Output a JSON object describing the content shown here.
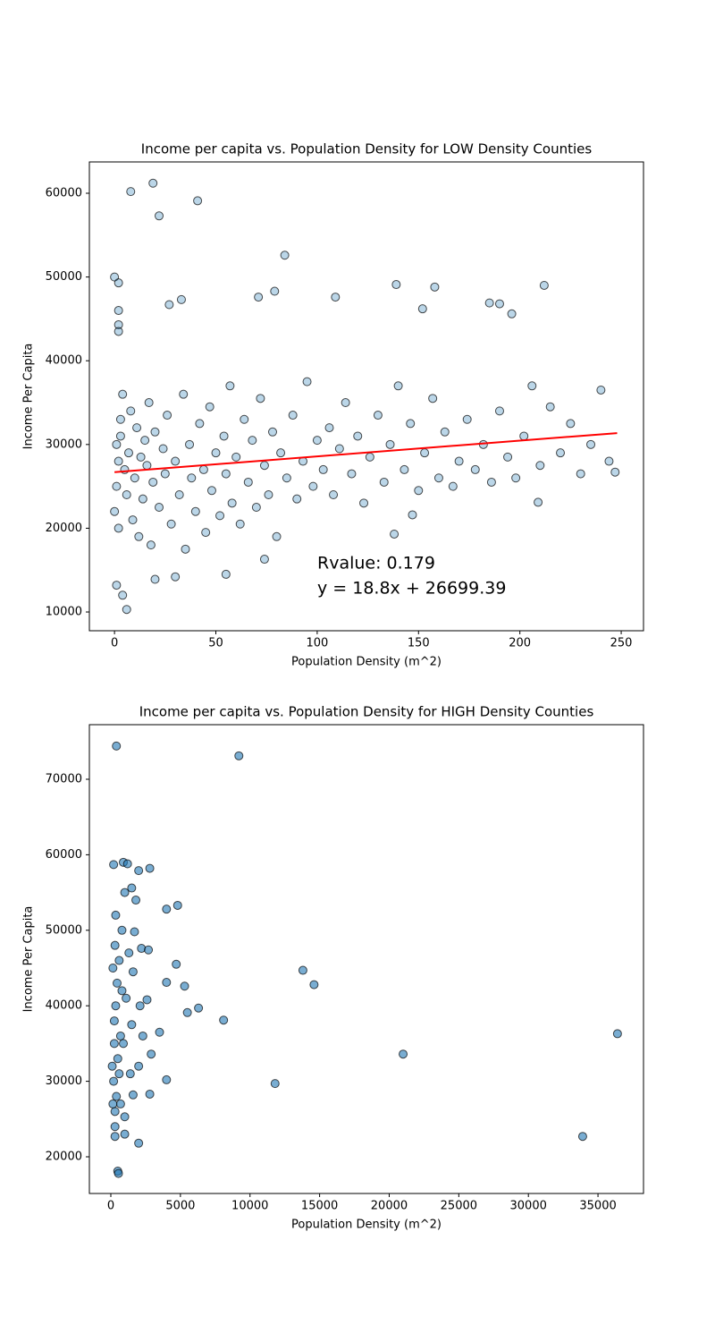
{
  "chart_data": [
    {
      "type": "scatter",
      "title": "Income per capita vs. Population Density for LOW Density Counties",
      "x_label": "Population Density (m^2)",
      "y_label": "Income Per Capita",
      "xlim": [
        -12.4,
        261
      ],
      "ylim": [
        7760,
        63740
      ],
      "xticks": [
        0,
        50,
        100,
        150,
        200,
        250
      ],
      "yticks": [
        10000,
        20000,
        30000,
        40000,
        50000,
        60000
      ],
      "color": "#1f77b4",
      "opacity": 0.3,
      "x": [
        8,
        19,
        41,
        22,
        84,
        0,
        2,
        2,
        2,
        2,
        139,
        158,
        212,
        79,
        71,
        109,
        33,
        27,
        185,
        190,
        152,
        196,
        6,
        4,
        1,
        20,
        30,
        55,
        74,
        138,
        147,
        209,
        1,
        2,
        1,
        3,
        0,
        4,
        2,
        5,
        3,
        6,
        7,
        8,
        9,
        10,
        11,
        12,
        13,
        14,
        15,
        16,
        17,
        18,
        19,
        20,
        22,
        24,
        25,
        26,
        28,
        30,
        32,
        34,
        35,
        37,
        38,
        40,
        42,
        44,
        45,
        47,
        48,
        50,
        52,
        54,
        55,
        57,
        58,
        60,
        62,
        64,
        66,
        68,
        70,
        72,
        74,
        76,
        78,
        80,
        82,
        85,
        88,
        90,
        93,
        95,
        98,
        100,
        103,
        106,
        108,
        111,
        114,
        117,
        120,
        123,
        126,
        130,
        133,
        136,
        140,
        143,
        146,
        150,
        153,
        157,
        160,
        163,
        167,
        170,
        174,
        178,
        182,
        186,
        190,
        194,
        198,
        202,
        206,
        210,
        215,
        220,
        225,
        230,
        235,
        240,
        244,
        247
      ],
      "values": [
        60200,
        61200,
        59100,
        57300,
        52600,
        50000,
        49300,
        46000,
        44300,
        43500,
        49100,
        48800,
        49000,
        48300,
        47600,
        47600,
        47300,
        46700,
        46900,
        46800,
        46200,
        45600,
        10300,
        12000,
        13200,
        13900,
        14200,
        14500,
        16300,
        19300,
        21600,
        23100,
        30000,
        28000,
        25000,
        33000,
        22000,
        36000,
        20000,
        27000,
        31000,
        24000,
        29000,
        34000,
        21000,
        26000,
        32000,
        19000,
        28500,
        23500,
        30500,
        27500,
        35000,
        18000,
        25500,
        31500,
        22500,
        29500,
        26500,
        33500,
        20500,
        28000,
        24000,
        36000,
        17500,
        30000,
        26000,
        22000,
        32500,
        27000,
        19500,
        34500,
        24500,
        29000,
        21500,
        31000,
        26500,
        37000,
        23000,
        28500,
        20500,
        33000,
        25500,
        30500,
        22500,
        35500,
        27500,
        24000,
        31500,
        19000,
        29000,
        26000,
        33500,
        23500,
        28000,
        37500,
        25000,
        30500,
        27000,
        32000,
        24000,
        29500,
        35000,
        26500,
        31000,
        23000,
        28500,
        33500,
        25500,
        30000,
        37000,
        27000,
        32500,
        24500,
        29000,
        35500,
        26000,
        31500,
        25000,
        28000,
        33000,
        27000,
        30000,
        25500,
        34000,
        28500,
        26000,
        31000,
        37000,
        27500,
        34500,
        29000,
        32500,
        26500,
        30000,
        36500,
        28000,
        26700
      ],
      "fit": {
        "x": [
          0,
          248
        ],
        "values": [
          26699.39,
          31361.79
        ],
        "color": "#ff0000"
      },
      "annotations": [
        "Rvalue: 0.179",
        "y = 18.8x + 26699.39"
      ],
      "annotation_color": "#ff0000"
    },
    {
      "type": "scatter",
      "title": "Income per capita vs. Population Density for HIGH Density Counties",
      "x_label": "Population Density (m^2)",
      "y_label": "Income Per Capita",
      "xlim": [
        -1541,
        38270
      ],
      "ylim": [
        15142,
        77227
      ],
      "xticks": [
        0,
        5000,
        10000,
        15000,
        20000,
        25000,
        30000,
        35000
      ],
      "yticks": [
        20000,
        30000,
        40000,
        50000,
        60000,
        70000
      ],
      "color": "#1f77b4",
      "opacity": 0.6,
      "x": [
        400,
        9200,
        36400,
        33900,
        21000,
        11800,
        13800,
        14600,
        8100,
        6300,
        5500,
        5300,
        4700,
        4800,
        4000,
        3500,
        4000,
        4000,
        500,
        550,
        2000,
        1000,
        300,
        200,
        300,
        250,
        350,
        150,
        400,
        300,
        500,
        250,
        600,
        450,
        700,
        350,
        800,
        200,
        900,
        1000,
        1200,
        1500,
        2000,
        2800,
        1800,
        1300,
        1700,
        2200,
        2700,
        1100,
        1600,
        2100,
        2600,
        1500,
        2300,
        2900,
        1400,
        2000,
        1600,
        2800,
        900,
        1000,
        700,
        300,
        150,
        100,
        600,
        800
      ],
      "values": [
        74400,
        73100,
        36300,
        22700,
        33600,
        29700,
        44700,
        42800,
        38100,
        39700,
        39100,
        42600,
        45500,
        53300,
        52800,
        36500,
        43100,
        30200,
        18100,
        17800,
        21800,
        23000,
        22700,
        30000,
        26000,
        35000,
        40000,
        45000,
        28000,
        48000,
        33000,
        38000,
        31000,
        43000,
        36000,
        52000,
        50000,
        58700,
        59000,
        55000,
        58800,
        55600,
        57900,
        58200,
        54000,
        47000,
        49800,
        47600,
        47400,
        41000,
        44500,
        40000,
        40800,
        37500,
        36000,
        33600,
        31000,
        32000,
        28200,
        28300,
        35000,
        25300,
        27000,
        24000,
        27000,
        32000,
        46000,
        42000
      ]
    }
  ]
}
